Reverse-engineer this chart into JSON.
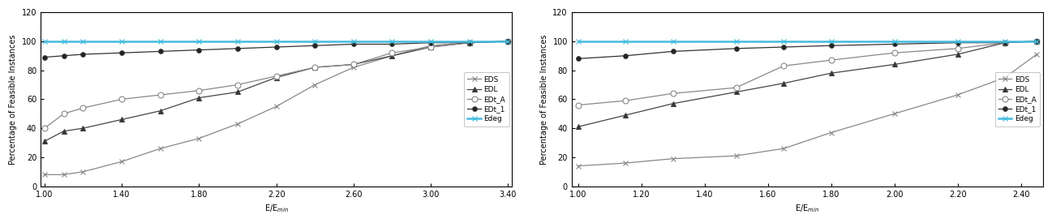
{
  "chart1": {
    "x": [
      1.0,
      1.1,
      1.2,
      1.4,
      1.6,
      1.8,
      2.0,
      2.2,
      2.4,
      2.6,
      2.8,
      3.0,
      3.2,
      3.4
    ],
    "EDS": [
      8,
      8,
      10,
      17,
      26,
      33,
      43,
      55,
      70,
      82,
      90,
      97,
      99,
      100
    ],
    "EDL": [
      31,
      38,
      40,
      46,
      52,
      61,
      65,
      75,
      82,
      84,
      90,
      96,
      99,
      100
    ],
    "EDt_A": [
      40,
      50,
      54,
      60,
      63,
      66,
      70,
      76,
      82,
      84,
      92,
      96,
      99,
      100
    ],
    "EDt_1": [
      89,
      90,
      91,
      92,
      93,
      94,
      95,
      96,
      97,
      98,
      98,
      99,
      99,
      100
    ],
    "Edeg": [
      100,
      100,
      100,
      100,
      100,
      100,
      100,
      100,
      100,
      100,
      100,
      100,
      100,
      100
    ],
    "xlim": [
      1.0,
      3.4
    ],
    "xticks": [
      1.0,
      1.4,
      1.8,
      2.2,
      2.6,
      3.0,
      3.4
    ],
    "ylim": [
      0,
      120
    ],
    "yticks": [
      0,
      20,
      40,
      60,
      80,
      100,
      120
    ]
  },
  "chart2": {
    "x": [
      1.0,
      1.15,
      1.3,
      1.5,
      1.65,
      1.8,
      2.0,
      2.2,
      2.35,
      2.45
    ],
    "EDS": [
      14,
      16,
      19,
      21,
      26,
      37,
      50,
      63,
      75,
      91
    ],
    "EDL": [
      41,
      49,
      57,
      65,
      71,
      78,
      84,
      91,
      99,
      100
    ],
    "EDt_A": [
      56,
      59,
      64,
      68,
      83,
      87,
      92,
      95,
      99,
      100
    ],
    "EDt_1": [
      88,
      90,
      93,
      95,
      96,
      97,
      98,
      99,
      99,
      100
    ],
    "Edeg": [
      100,
      100,
      100,
      100,
      100,
      100,
      100,
      100,
      100,
      100
    ],
    "xlim": [
      1.0,
      2.45
    ],
    "xticks": [
      1.0,
      1.2,
      1.4,
      1.6,
      1.8,
      2.0,
      2.2,
      2.4
    ],
    "ylim": [
      0,
      120
    ],
    "yticks": [
      0,
      20,
      40,
      60,
      80,
      100,
      120
    ]
  },
  "series": [
    {
      "key": "EDS",
      "label": "EDS",
      "color": "#888888",
      "marker": "x",
      "markerface": "#888888",
      "markersize": 4,
      "linewidth": 0.9,
      "zorder": 2
    },
    {
      "key": "EDL",
      "label": "EDL",
      "color": "#444444",
      "marker": "^",
      "markerface": "#333333",
      "markersize": 5,
      "linewidth": 0.9,
      "zorder": 3
    },
    {
      "key": "EDt_A",
      "label": "EDt_A",
      "color": "#888888",
      "marker": "o",
      "markerface": "white",
      "markersize": 5,
      "linewidth": 0.9,
      "zorder": 3
    },
    {
      "key": "EDt_1",
      "label": "EDt_1",
      "color": "#333333",
      "marker": "o",
      "markerface": "#222222",
      "markersize": 4,
      "linewidth": 0.9,
      "zorder": 4
    },
    {
      "key": "Edeg",
      "label": "Edeg",
      "color": "#44bbdd",
      "marker": "x",
      "markerface": "#44bbdd",
      "markersize": 4,
      "linewidth": 1.8,
      "zorder": 5
    }
  ],
  "ylabel": "Percentage of Feasible Instances",
  "xlabel_math": "E/E$_{min}$",
  "figsize": [
    12.97,
    2.75
  ],
  "dpi": 100,
  "legend_loc": "center right",
  "legend_fontsize": 6.5,
  "tick_fontsize": 7,
  "label_fontsize": 7
}
